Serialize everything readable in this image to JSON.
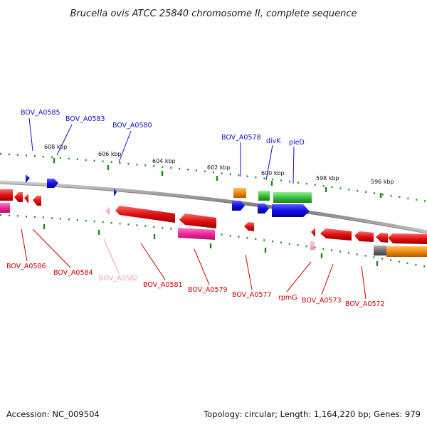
{
  "title": "Brucella ovis ATCC 25840 chromosome II, complete sequence",
  "footer": {
    "accession": "Accession: NC_009504",
    "summary": "Topology: circular; Length: 1,164,220 bp; Genes: 979"
  },
  "ruler": {
    "labels": [
      "608 kbp",
      "606 kbp",
      "604 kbp",
      "602 kbp",
      "600 kbp",
      "598 kbp",
      "596 kbp"
    ]
  },
  "genes_top": [
    {
      "name": "BOV_A0585",
      "color": "#0000c0"
    },
    {
      "name": "BOV_A0583",
      "color": "#0000c0"
    },
    {
      "name": "BOV_A0580",
      "color": "#0000c0"
    },
    {
      "name": "BOV_A0578",
      "color": "#0000c0"
    },
    {
      "name": "divK",
      "color": "#0000c0"
    },
    {
      "name": "pleD",
      "color": "#0000c0"
    }
  ],
  "genes_bottom": [
    {
      "name": "BOV_A0586",
      "color": "#cc0000"
    },
    {
      "name": "BOV_A0584",
      "color": "#cc0000"
    },
    {
      "name": "BOV_A0582",
      "color": "#f29ac6"
    },
    {
      "name": "BOV_A0581",
      "color": "#cc0000"
    },
    {
      "name": "BOV_A0579",
      "color": "#cc0000"
    },
    {
      "name": "BOV_A0577",
      "color": "#cc0000"
    },
    {
      "name": "rpmG",
      "color": "#cc0000"
    },
    {
      "name": "BOV_A0573",
      "color": "#cc0000"
    },
    {
      "name": "BOV_A0572",
      "color": "#cc0000"
    }
  ],
  "colors": {
    "forward": "#1a1ae6",
    "reverse": "#e61a1a",
    "magenta": "#ee2a9a",
    "orange": "#f08a10",
    "green": "#3cc03c",
    "backbone": "#8c8c8c",
    "tick": "#1a8a1a"
  }
}
